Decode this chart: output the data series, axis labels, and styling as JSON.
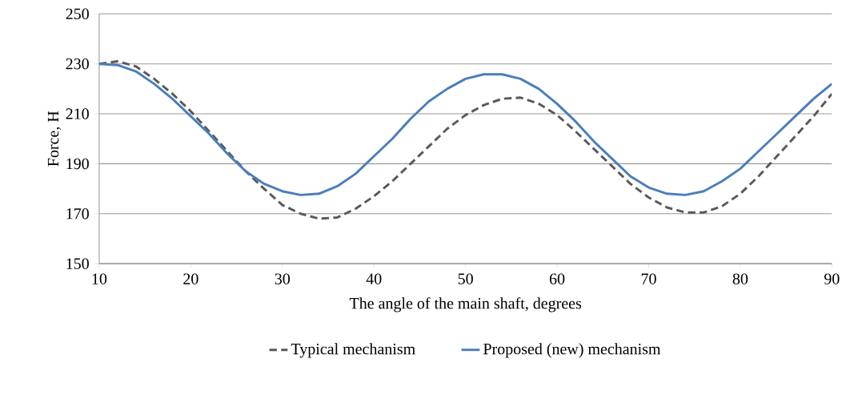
{
  "chart_data": {
    "type": "line",
    "xlabel": "The angle of the main shaft, degrees",
    "ylabel": "Force, H",
    "xlim": [
      10,
      90
    ],
    "xticks": [
      10,
      20,
      30,
      40,
      50,
      60,
      70,
      80,
      90
    ],
    "ylim": [
      150,
      250
    ],
    "yticks": [
      150,
      170,
      190,
      210,
      230,
      250
    ],
    "grid": "y",
    "legend": "bottom",
    "marker": "none",
    "series": [
      {
        "name": "Typical mechanism",
        "color": "#595959",
        "line_style": "dashed",
        "x": [
          10,
          12,
          14,
          16,
          18,
          20,
          22,
          24,
          26,
          28,
          30,
          32,
          34,
          36,
          38,
          40,
          42,
          44,
          46,
          48,
          50,
          52,
          54,
          56,
          58,
          60,
          62,
          64,
          66,
          68,
          70,
          72,
          74,
          76,
          78,
          80,
          82,
          84,
          86,
          88,
          90
        ],
        "values": [
          230,
          231,
          229,
          224,
          218,
          211,
          203,
          195,
          187,
          180,
          173.5,
          170,
          168,
          168.5,
          172,
          177,
          183,
          190,
          197,
          204,
          209.5,
          213.5,
          216,
          216.5,
          214,
          209.5,
          203,
          196,
          189,
          182,
          176.5,
          172.5,
          170.5,
          170.5,
          173,
          178,
          185,
          193,
          201,
          209,
          218
        ]
      },
      {
        "name": "Proposed (new) mechanism",
        "color": "#4a7ebb",
        "line_style": "solid",
        "x": [
          10,
          12,
          14,
          16,
          18,
          20,
          22,
          24,
          26,
          28,
          30,
          32,
          34,
          36,
          38,
          40,
          42,
          44,
          46,
          48,
          50,
          52,
          54,
          56,
          58,
          60,
          62,
          64,
          66,
          68,
          70,
          72,
          74,
          76,
          78,
          80,
          82,
          84,
          86,
          88,
          90
        ],
        "values": [
          230,
          229.5,
          227,
          222,
          216,
          209,
          202,
          194,
          187,
          182,
          179,
          177.5,
          178,
          181,
          186,
          193,
          200,
          208,
          215,
          220,
          224,
          225.8,
          225.8,
          224,
          220,
          214,
          207,
          199,
          192,
          185,
          180.5,
          178,
          177.5,
          179,
          183,
          188,
          195,
          202,
          209,
          216,
          222
        ]
      }
    ]
  }
}
